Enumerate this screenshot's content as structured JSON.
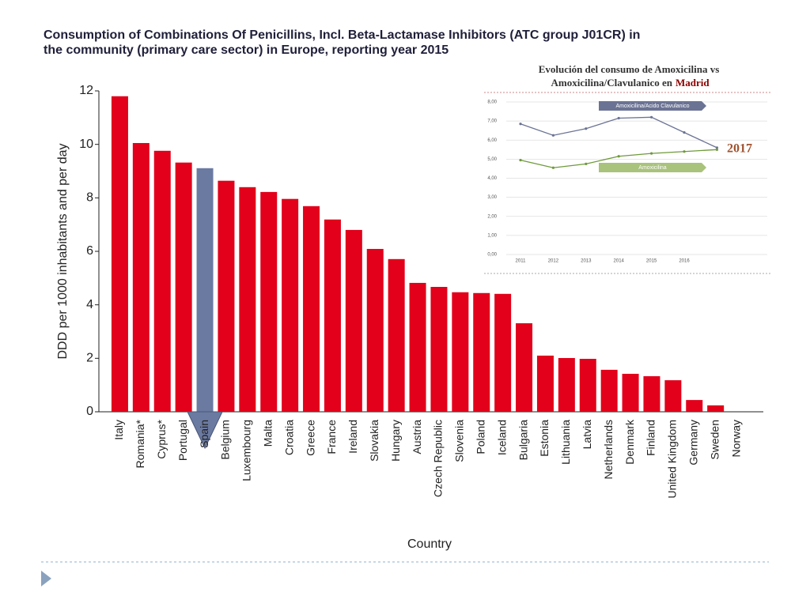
{
  "chart_data": [
    {
      "type": "bar",
      "title": [
        "Consumption of Combinations Of Penicillins, Incl. Beta-Lactamase Inhibitors (ATC group J01CR) in",
        "the community (primary care sector) in Europe, reporting year 2015"
      ],
      "y_label": "DDD per 1000 inhabitants and per day",
      "x_label": "Country",
      "categories": [
        "Italy",
        "Romania*",
        "Cyprus*",
        "Portugal",
        "Spain",
        "Belgium",
        "Luxembourg",
        "Malta",
        "Croatia",
        "Greece",
        "France",
        "Ireland",
        "Slovakia",
        "Hungary",
        "Austria",
        "Czech Republic",
        "Slovenia",
        "Poland",
        "Iceland",
        "Bulgaria",
        "Estonia",
        "Lithuania",
        "Latvia",
        "Netherlands",
        "Denmark",
        "Finland",
        "United Kingdom",
        "Germany",
        "Sweden",
        "Norway"
      ],
      "values": [
        11.8,
        10.05,
        9.76,
        9.32,
        9.11,
        8.64,
        8.4,
        8.22,
        7.96,
        7.69,
        7.19,
        6.8,
        6.09,
        5.71,
        4.82,
        4.67,
        4.47,
        4.44,
        4.41,
        3.31,
        2.1,
        2.01,
        1.98,
        1.57,
        1.42,
        1.33,
        1.18,
        0.44,
        0.24,
        0
      ],
      "colors": [
        "#e2001a",
        "#e2001a",
        "#e2001a",
        "#e2001a",
        "#6b7aa1",
        "#e2001a",
        "#e2001a",
        "#e2001a",
        "#e2001a",
        "#e2001a",
        "#e2001a",
        "#e2001a",
        "#e2001a",
        "#e2001a",
        "#e2001a",
        "#e2001a",
        "#e2001a",
        "#e2001a",
        "#e2001a",
        "#e2001a",
        "#e2001a",
        "#e2001a",
        "#e2001a",
        "#e2001a",
        "#e2001a",
        "#e2001a",
        "#e2001a",
        "#e2001a",
        "#e2001a",
        "#e2001a"
      ],
      "ylim": [
        0,
        12
      ],
      "yticks": [
        0,
        2,
        4,
        6,
        8,
        10,
        12
      ]
    },
    {
      "type": "line",
      "title": [
        "Evolución del consumo de Amoxicilina vs",
        "Amoxicilina/Clavulanico en"
      ],
      "title_highlight": "Madrid",
      "annotation": "2017",
      "categories": [
        "2011",
        "2012",
        "2013",
        "2014",
        "2015",
        "2016",
        null
      ],
      "series": [
        {
          "name": "Amoxicilina/Acido Clavulanico",
          "color": "#6b7394",
          "values": [
            6.85,
            6.25,
            6.6,
            7.15,
            7.2,
            6.4,
            5.6
          ]
        },
        {
          "name": "Amoxicilina",
          "color": "#6f9a3c",
          "values": [
            4.95,
            4.55,
            4.75,
            5.15,
            5.3,
            5.4,
            5.5
          ]
        }
      ],
      "ylim": [
        0,
        8
      ],
      "yticks": [
        {
          "value": 0,
          "label": "0,00"
        },
        {
          "value": 1,
          "label": "1,00"
        },
        {
          "value": 2,
          "label": "2,00"
        },
        {
          "value": 3,
          "label": "3,00"
        },
        {
          "value": 4,
          "label": "4,00"
        },
        {
          "value": 5,
          "label": "5,00"
        },
        {
          "value": 6,
          "label": "6,00"
        },
        {
          "value": 7,
          "label": "7,00"
        },
        {
          "value": 8,
          "label": "8,00"
        }
      ],
      "grid": true
    }
  ]
}
